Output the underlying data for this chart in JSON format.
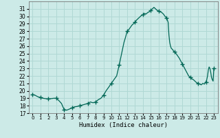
{
  "title": "",
  "xlabel": "Humidex (Indice chaleur)",
  "ylabel": "",
  "xlim": [
    -0.5,
    23.5
  ],
  "ylim": [
    17,
    32
  ],
  "yticks": [
    17,
    18,
    19,
    20,
    21,
    22,
    23,
    24,
    25,
    26,
    27,
    28,
    29,
    30,
    31
  ],
  "xticks": [
    0,
    1,
    2,
    3,
    4,
    5,
    6,
    7,
    8,
    9,
    10,
    11,
    12,
    13,
    14,
    15,
    16,
    17,
    18,
    19,
    20,
    21,
    22,
    23
  ],
  "bg_color": "#cceae7",
  "grid_color": "#b0d8d4",
  "line_color": "#006655",
  "marker_color": "#006655",
  "x": [
    0,
    0.33,
    0.67,
    1,
    1.33,
    1.67,
    2,
    2.33,
    2.67,
    3,
    3.33,
    3.67,
    4,
    4.33,
    4.67,
    5,
    5.33,
    5.67,
    6,
    6.33,
    6.67,
    7,
    7.33,
    7.67,
    8,
    8.33,
    8.67,
    9,
    9.33,
    9.67,
    10,
    10.33,
    10.67,
    11,
    11.2,
    11.4,
    11.6,
    11.8,
    12,
    12.2,
    12.4,
    12.6,
    12.8,
    13,
    13.2,
    13.4,
    13.6,
    13.8,
    14,
    14.2,
    14.4,
    14.6,
    14.8,
    15,
    15.2,
    15.4,
    15.6,
    15.8,
    16,
    16.2,
    16.4,
    16.6,
    16.8,
    17,
    17.1,
    17.2,
    17.3,
    17.4,
    17.5,
    17.6,
    17.7,
    17.8,
    17.9,
    18,
    18.2,
    18.4,
    18.6,
    18.8,
    19,
    19.2,
    19.4,
    19.6,
    19.8,
    20,
    20.2,
    20.4,
    20.6,
    20.8,
    21,
    21.2,
    21.4,
    21.6,
    21.8,
    22,
    22.1,
    22.2,
    22.3,
    22.4,
    22.5,
    22.6,
    22.7,
    22.8,
    22.9,
    23
  ],
  "y": [
    19.5,
    19.4,
    19.2,
    19.1,
    19.0,
    18.95,
    18.9,
    18.95,
    19.0,
    19.0,
    18.7,
    18.3,
    17.5,
    17.4,
    17.55,
    17.7,
    17.85,
    17.9,
    18.0,
    18.1,
    18.2,
    18.3,
    18.5,
    18.4,
    18.5,
    18.8,
    19.0,
    19.4,
    20.0,
    20.5,
    21.0,
    21.5,
    22.0,
    23.5,
    24.5,
    25.5,
    26.5,
    27.2,
    28.0,
    28.2,
    28.5,
    28.8,
    29.0,
    29.2,
    29.5,
    29.7,
    29.9,
    30.1,
    30.2,
    30.4,
    30.3,
    30.5,
    30.6,
    30.8,
    31.0,
    31.2,
    31.0,
    30.8,
    30.7,
    30.6,
    30.5,
    30.3,
    30.0,
    29.8,
    29.5,
    29.2,
    27.5,
    26.5,
    26.0,
    25.7,
    25.6,
    25.5,
    25.3,
    25.2,
    25.0,
    24.7,
    24.4,
    24.0,
    23.6,
    23.2,
    22.8,
    22.4,
    22.0,
    21.8,
    21.6,
    21.5,
    21.3,
    21.1,
    21.0,
    20.9,
    20.8,
    21.0,
    20.9,
    21.2,
    21.5,
    22.0,
    22.8,
    23.2,
    23.0,
    22.5,
    21.8,
    21.5,
    21.3,
    23.0
  ],
  "marker_x": [
    0,
    1,
    2,
    3,
    4,
    5,
    6,
    7,
    8,
    9,
    10,
    11,
    12,
    13,
    14,
    15,
    16,
    17,
    18,
    19,
    20,
    21,
    22,
    23
  ],
  "marker_y": [
    19.5,
    19.1,
    18.9,
    19.0,
    17.5,
    17.7,
    18.0,
    18.3,
    18.5,
    19.4,
    21.0,
    23.5,
    28.0,
    29.2,
    30.2,
    30.8,
    30.7,
    29.8,
    25.2,
    23.6,
    21.8,
    21.0,
    21.2,
    23.0
  ]
}
